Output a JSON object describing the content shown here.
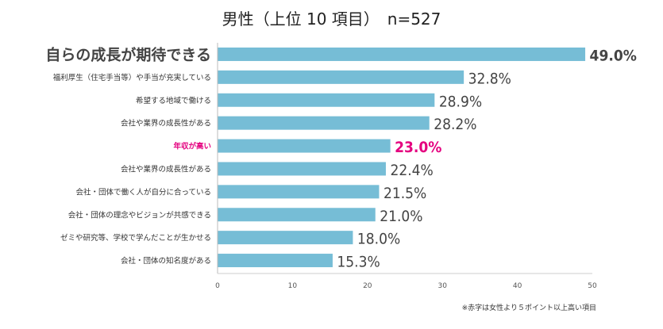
{
  "chart_data": {
    "type": "bar",
    "orientation": "horizontal",
    "title": "男性（上位 10 項目）　n=527",
    "categories": [
      "自らの成長が期待できる",
      "福利厚生（住宅手当等）や手当が充実している",
      "希望する地域で働ける",
      "会社や業界の成長性がある",
      "年収が高い",
      "会社や業界の成長性がある",
      "会社・団体で働く人が自分に合っている",
      "会社・団体の理念やビジョンが共感できる",
      "ゼミや研究等、学校で学んだことが生かせる",
      "会社・団体の知名度がある"
    ],
    "values": [
      49.0,
      32.8,
      28.9,
      28.2,
      23.0,
      22.4,
      21.5,
      21.0,
      18.0,
      15.3
    ],
    "value_labels": [
      "49.0%",
      "32.8%",
      "28.9%",
      "28.2%",
      "23.0%",
      "22.4%",
      "21.5%",
      "21.0%",
      "18.0%",
      "15.3%"
    ],
    "highlight_index": 4,
    "emphasis_index": 0,
    "xlim": [
      0,
      50
    ],
    "xticks": [
      "0",
      "10",
      "20",
      "30",
      "40",
      "50"
    ],
    "bar_color": "#76bdd6",
    "highlight_color": "#e4007f",
    "label_color": "#333333",
    "grid": false
  },
  "note": "※赤字は女性より５ポイント以上高い項目"
}
